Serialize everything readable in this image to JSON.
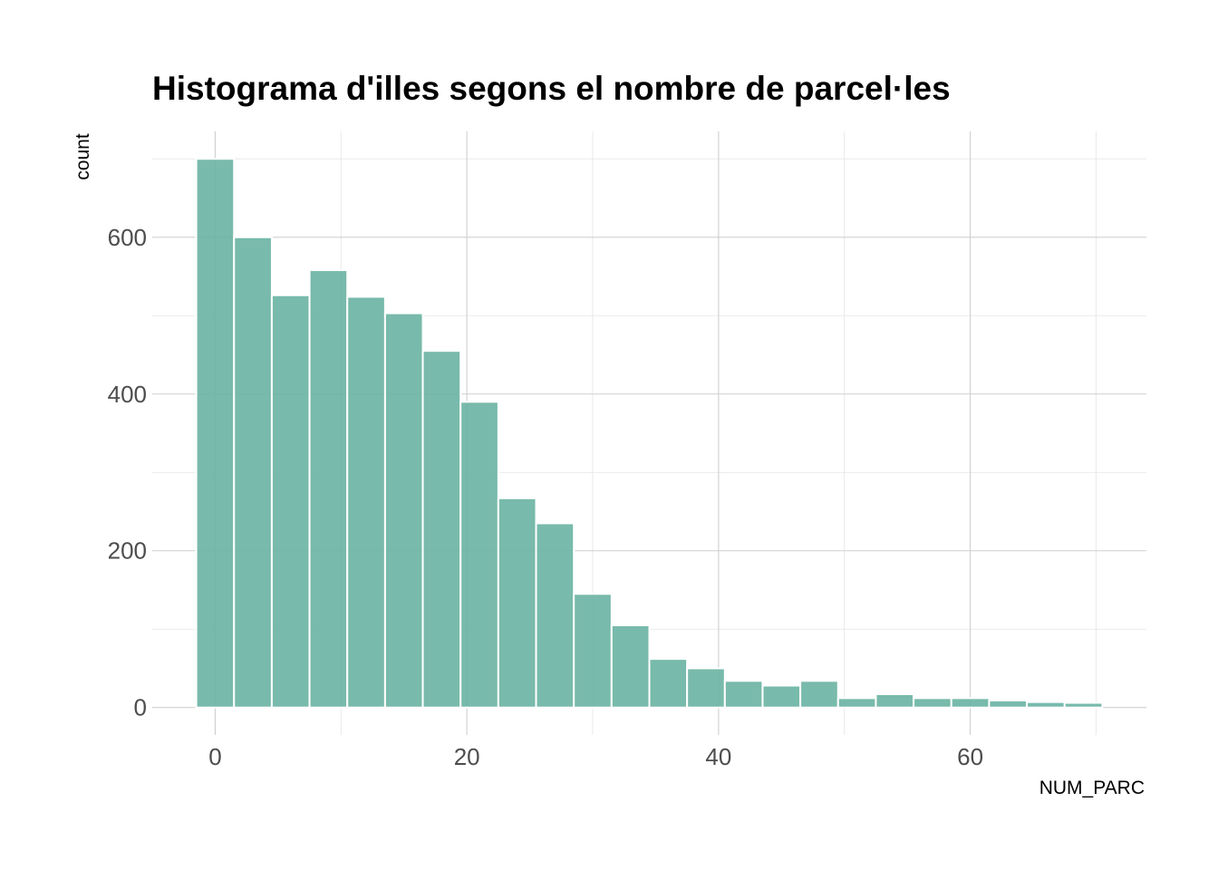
{
  "chart_data": {
    "type": "bar",
    "title": "Histograma d'illes segons el nombre de parcel·les",
    "xlabel": "NUM_PARC",
    "ylabel": "count",
    "bin_width": 3,
    "bin_starts": [
      -1.5,
      1.5,
      4.5,
      7.5,
      10.5,
      13.5,
      16.5,
      19.5,
      22.5,
      25.5,
      28.5,
      31.5,
      34.5,
      37.5,
      40.5,
      43.5,
      46.5,
      49.5,
      52.5,
      55.5,
      58.5,
      61.5,
      64.5,
      67.5
    ],
    "values": [
      700,
      600,
      526,
      558,
      524,
      503,
      455,
      390,
      267,
      235,
      145,
      105,
      62,
      50,
      34,
      28,
      34,
      12,
      17,
      12,
      12,
      9,
      7,
      6
    ],
    "xlim": [
      -5,
      74
    ],
    "ylim": [
      -35,
      735
    ],
    "x_ticks": [
      0,
      20,
      40,
      60
    ],
    "x_tick_labels": [
      "0",
      "20",
      "40",
      "60"
    ],
    "x_minor_ticks": [
      10,
      30,
      50,
      70
    ],
    "y_ticks": [
      0,
      200,
      400,
      600
    ],
    "y_tick_labels": [
      "0",
      "200",
      "400",
      "600"
    ],
    "y_minor_ticks": [
      100,
      300,
      500,
      700
    ],
    "bar_color": "#69b3a2",
    "bar_border": "#ffffff",
    "grid": true,
    "legend": "none"
  }
}
